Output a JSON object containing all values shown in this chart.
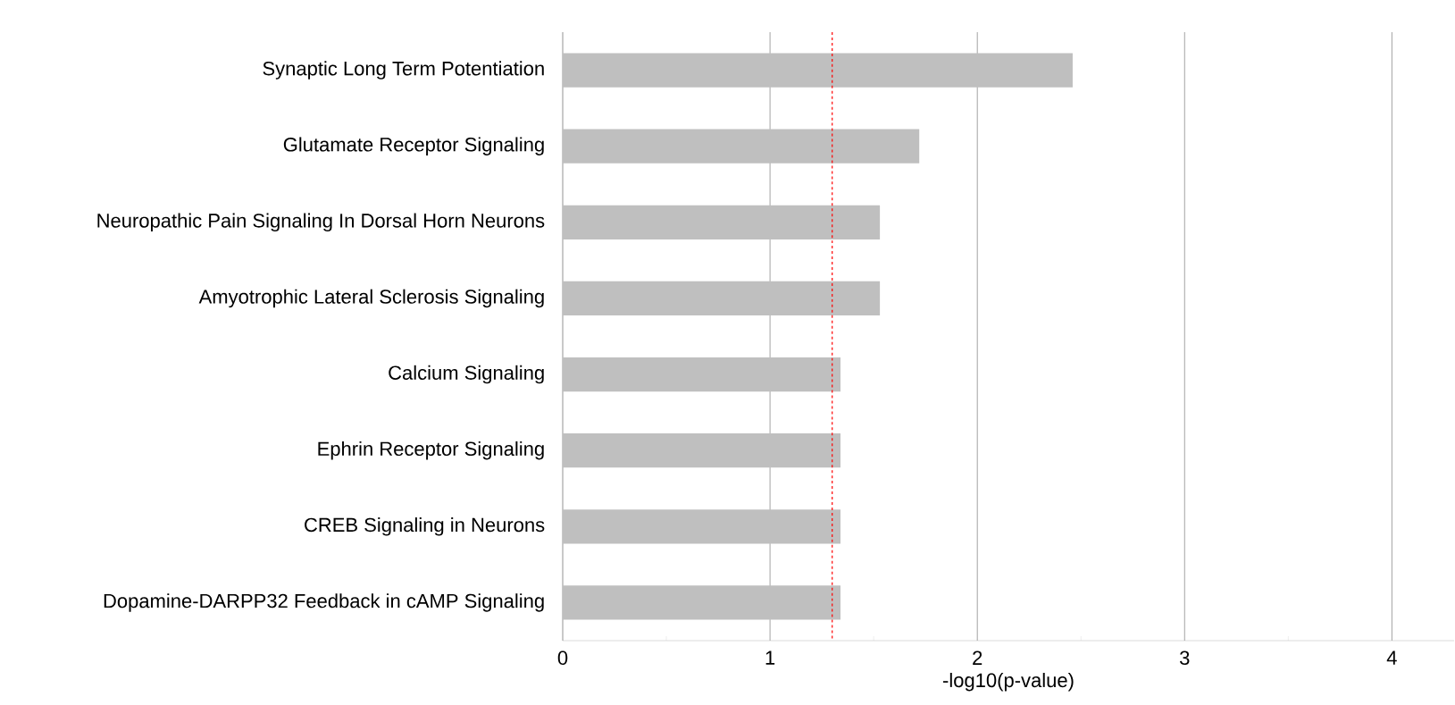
{
  "chart_data": {
    "type": "bar",
    "orientation": "horizontal",
    "xlabel": "-log10(p-value)",
    "categories": [
      "Synaptic Long Term Potentiation",
      "Glutamate Receptor Signaling",
      "Neuropathic Pain Signaling In Dorsal Horn Neurons",
      "Amyotrophic Lateral Sclerosis Signaling",
      "Calcium Signaling",
      "Ephrin Receptor Signaling",
      "CREB Signaling in Neurons",
      "Dopamine-DARPP32 Feedback in cAMP Signaling"
    ],
    "values": [
      2.46,
      1.72,
      1.53,
      1.53,
      1.34,
      1.34,
      1.34,
      1.34
    ],
    "color": "#bfbfbf",
    "xlim": [
      0,
      4.3
    ],
    "xticks": [
      0,
      1,
      2,
      3,
      4
    ],
    "grid": "x",
    "ref_lines": [
      {
        "axis": "x",
        "value": 1.3,
        "color": "#ff0000",
        "line_style": "dashed"
      }
    ]
  }
}
